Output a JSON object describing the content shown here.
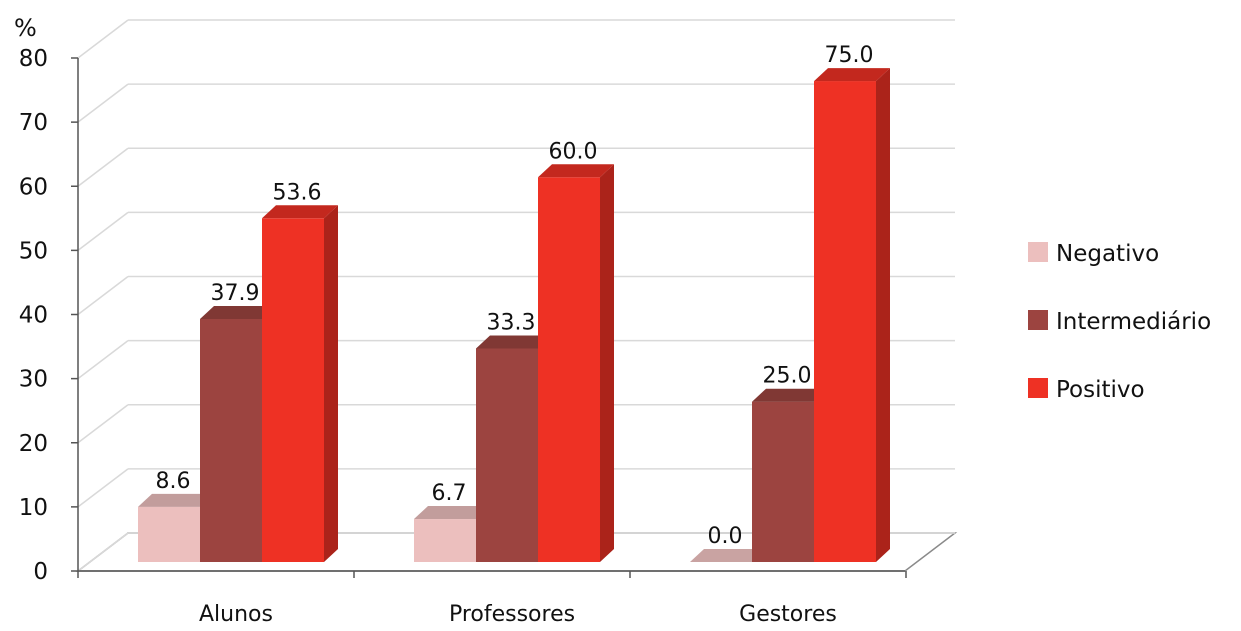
{
  "chart_data": {
    "type": "bar",
    "ylabel": "%",
    "ylim": [
      0,
      80
    ],
    "yticks": [
      0,
      10,
      20,
      30,
      40,
      50,
      60,
      70,
      80
    ],
    "categories": [
      "Alunos",
      "Professores",
      "Gestores"
    ],
    "series": [
      {
        "name": "Negativo",
        "values": [
          8.6,
          6.7,
          0.0
        ],
        "color": "#ecbfbe"
      },
      {
        "name": "Intermediário",
        "values": [
          37.9,
          33.3,
          25.0
        ],
        "color": "#9c4440"
      },
      {
        "name": "Positivo",
        "values": [
          53.6,
          60.0,
          75.0
        ],
        "color": "#ee3124"
      }
    ],
    "legend": "right",
    "grid": true,
    "style": "3d-clustered-column",
    "value_format_decimals": 1
  }
}
